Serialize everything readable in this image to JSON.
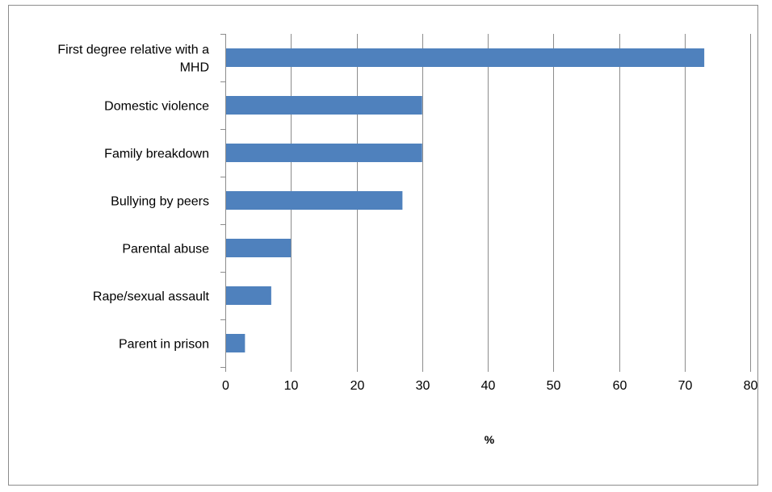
{
  "chart_data": {
    "type": "bar",
    "orientation": "horizontal",
    "categories": [
      "First degree relative with a MHD",
      "Domestic violence",
      "Family breakdown",
      "Bullying by peers",
      "Parental abuse",
      "Rape/sexual assault",
      "Parent in prison"
    ],
    "values": [
      73,
      30,
      30,
      27,
      10,
      7,
      3
    ],
    "xlabel": "%",
    "ylabel": "",
    "xlim": [
      0,
      80
    ],
    "xticks": [
      "0",
      "10",
      "20",
      "30",
      "40",
      "50",
      "60",
      "70",
      "80"
    ],
    "grid": "vertical",
    "legend": "none",
    "bar_color": "#4f81bd"
  }
}
